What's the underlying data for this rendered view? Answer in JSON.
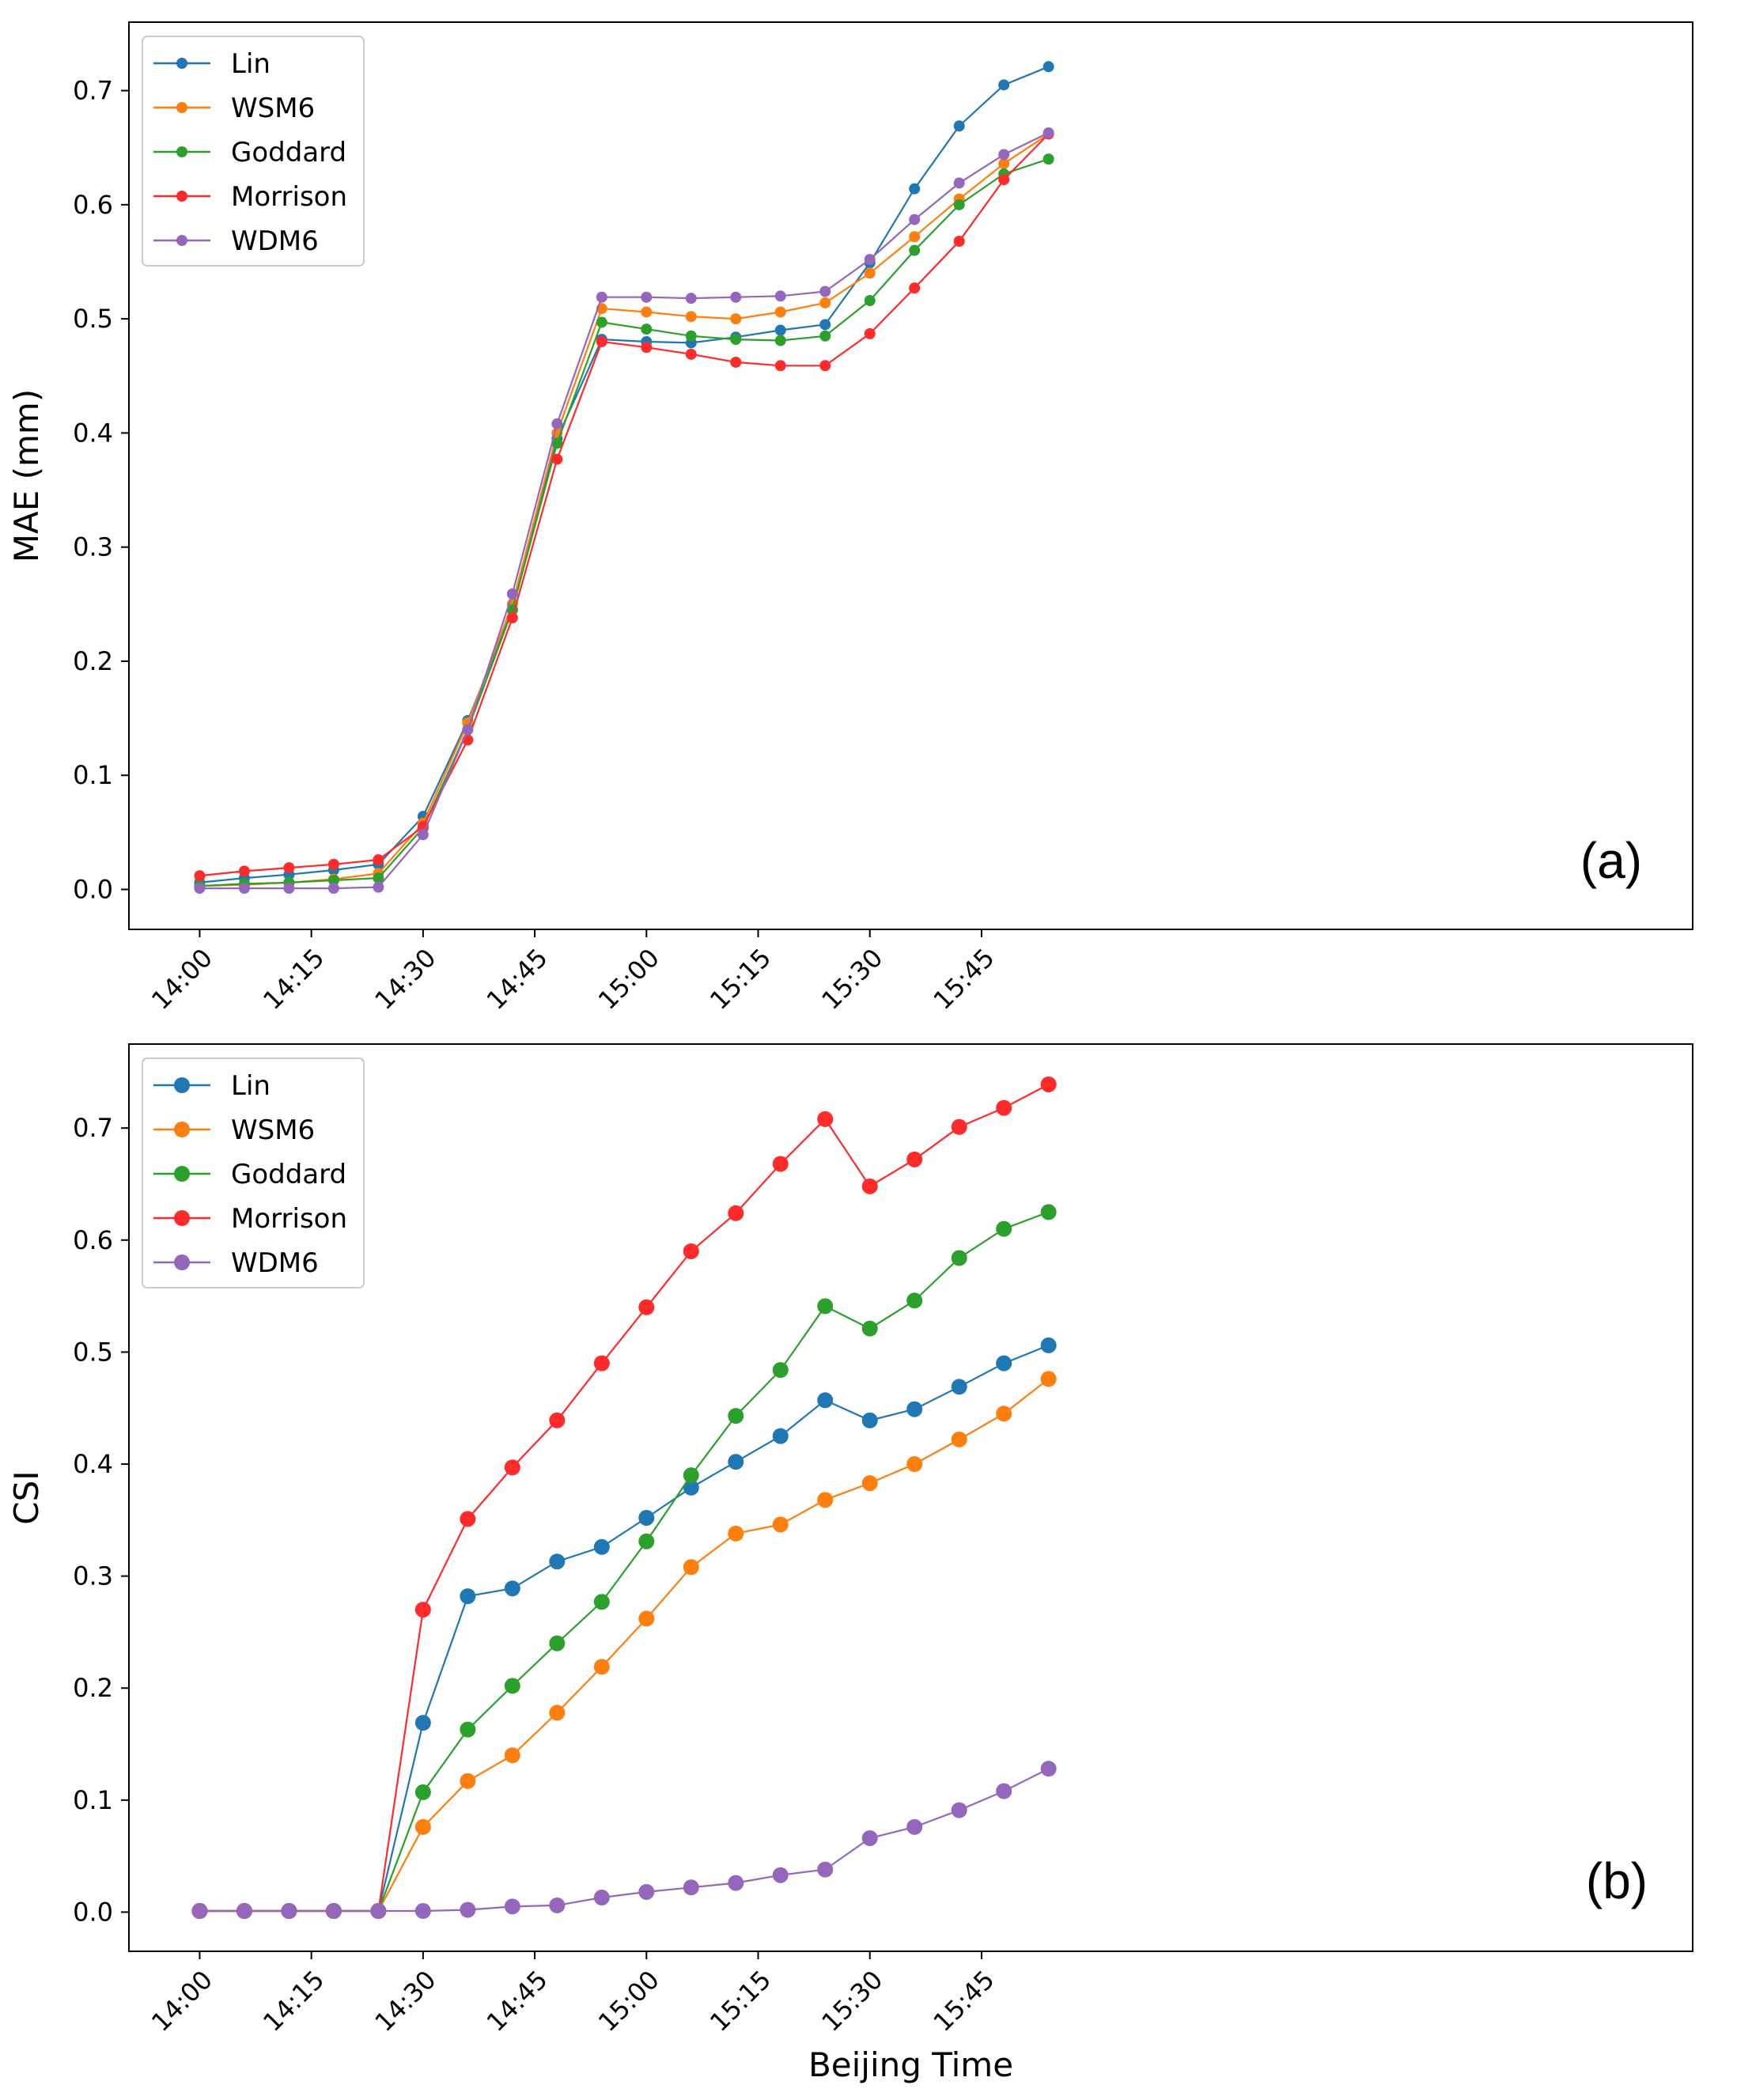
{
  "chart_data": [
    {
      "type": "line",
      "panel": "(a)",
      "ylabel": "MAE (mm)",
      "xlabel": "",
      "ylim": [
        -0.035,
        0.76
      ],
      "yticks": [
        0.0,
        0.1,
        0.2,
        0.3,
        0.4,
        0.5,
        0.6,
        0.7
      ],
      "ytick_labels": [
        "0.0",
        "0.1",
        "0.2",
        "0.3",
        "0.4",
        "0.5",
        "0.6",
        "0.7"
      ],
      "xlim": [
        -9.5,
        200.5
      ],
      "xticks": [
        0,
        15,
        30,
        45,
        60,
        75,
        90,
        105
      ],
      "xtick_labels": [
        "14:00",
        "14:15",
        "14:30",
        "14:45",
        "15:00",
        "15:15",
        "15:30",
        "15:45"
      ],
      "x": [
        0,
        6,
        12,
        18,
        24,
        30,
        36,
        42,
        48,
        54,
        60,
        66,
        72,
        78,
        84,
        90,
        96,
        102,
        108,
        114
      ],
      "legend_position": "upper-left",
      "marker_size": "small",
      "series": [
        {
          "name": "Lin",
          "color": "#1f77b4",
          "values": [
            0.006,
            0.01,
            0.013,
            0.017,
            0.022,
            0.064,
            0.148,
            0.245,
            0.395,
            0.482,
            0.48,
            0.479,
            0.484,
            0.49,
            0.495,
            0.549,
            0.614,
            0.669,
            0.705,
            0.721
          ]
        },
        {
          "name": "WSM6",
          "color": "#ff7f0e",
          "values": [
            0.003,
            0.004,
            0.006,
            0.009,
            0.014,
            0.058,
            0.146,
            0.25,
            0.4,
            0.509,
            0.506,
            0.502,
            0.5,
            0.506,
            0.514,
            0.54,
            0.572,
            0.605,
            0.636,
            0.662
          ]
        },
        {
          "name": "Goddard",
          "color": "#2ca02c",
          "values": [
            0.003,
            0.005,
            0.006,
            0.008,
            0.01,
            0.054,
            0.14,
            0.245,
            0.391,
            0.497,
            0.491,
            0.485,
            0.482,
            0.481,
            0.485,
            0.516,
            0.56,
            0.6,
            0.627,
            0.64
          ]
        },
        {
          "name": "Morrison",
          "color": "#ff2a2a",
          "values": [
            0.012,
            0.016,
            0.019,
            0.022,
            0.026,
            0.055,
            0.131,
            0.238,
            0.377,
            0.48,
            0.475,
            0.469,
            0.462,
            0.459,
            0.459,
            0.487,
            0.527,
            0.568,
            0.622,
            0.662
          ]
        },
        {
          "name": "WDM6",
          "color": "#9467bd",
          "values": [
            0.001,
            0.001,
            0.001,
            0.001,
            0.002,
            0.048,
            0.14,
            0.259,
            0.408,
            0.519,
            0.519,
            0.518,
            0.519,
            0.52,
            0.524,
            0.552,
            0.587,
            0.619,
            0.644,
            0.663
          ]
        }
      ]
    },
    {
      "type": "line",
      "panel": "(b)",
      "ylabel": "CSI",
      "xlabel": "Beijing Time",
      "ylim": [
        -0.035,
        0.775
      ],
      "yticks": [
        0.0,
        0.1,
        0.2,
        0.3,
        0.4,
        0.5,
        0.6,
        0.7
      ],
      "ytick_labels": [
        "0.0",
        "0.1",
        "0.2",
        "0.3",
        "0.4",
        "0.5",
        "0.6",
        "0.7"
      ],
      "xlim": [
        -9.5,
        200.5
      ],
      "xticks": [
        0,
        15,
        30,
        45,
        60,
        75,
        90,
        105
      ],
      "xtick_labels": [
        "14:00",
        "14:15",
        "14:30",
        "14:45",
        "15:00",
        "15:15",
        "15:30",
        "15:45"
      ],
      "x": [
        0,
        6,
        12,
        18,
        24,
        30,
        36,
        42,
        48,
        54,
        60,
        66,
        72,
        78,
        84,
        90,
        96,
        102,
        108,
        114
      ],
      "legend_position": "upper-left",
      "marker_size": "large",
      "series": [
        {
          "name": "Lin",
          "color": "#1f77b4",
          "values": [
            0.001,
            0.001,
            0.001,
            0.001,
            0.001,
            0.169,
            0.282,
            0.289,
            0.313,
            0.326,
            0.352,
            0.379,
            0.402,
            0.425,
            0.457,
            0.439,
            0.449,
            0.469,
            0.49,
            0.506
          ]
        },
        {
          "name": "WSM6",
          "color": "#ff7f0e",
          "values": [
            0.001,
            0.001,
            0.001,
            0.001,
            0.001,
            0.076,
            0.117,
            0.14,
            0.178,
            0.219,
            0.262,
            0.308,
            0.338,
            0.346,
            0.368,
            0.383,
            0.4,
            0.422,
            0.445,
            0.476
          ]
        },
        {
          "name": "Goddard",
          "color": "#2ca02c",
          "values": [
            0.001,
            0.001,
            0.001,
            0.001,
            0.001,
            0.107,
            0.163,
            0.202,
            0.24,
            0.277,
            0.331,
            0.39,
            0.443,
            0.484,
            0.541,
            0.521,
            0.546,
            0.584,
            0.61,
            0.625
          ]
        },
        {
          "name": "Morrison",
          "color": "#ff2a2a",
          "values": [
            0.001,
            0.001,
            0.001,
            0.001,
            0.001,
            0.27,
            0.351,
            0.397,
            0.439,
            0.49,
            0.54,
            0.59,
            0.624,
            0.668,
            0.708,
            0.648,
            0.672,
            0.701,
            0.718,
            0.739
          ]
        },
        {
          "name": "WDM6",
          "color": "#9467bd",
          "values": [
            0.001,
            0.001,
            0.001,
            0.001,
            0.001,
            0.001,
            0.002,
            0.005,
            0.006,
            0.013,
            0.018,
            0.022,
            0.026,
            0.033,
            0.038,
            0.066,
            0.076,
            0.091,
            0.108,
            0.128
          ]
        }
      ]
    }
  ]
}
